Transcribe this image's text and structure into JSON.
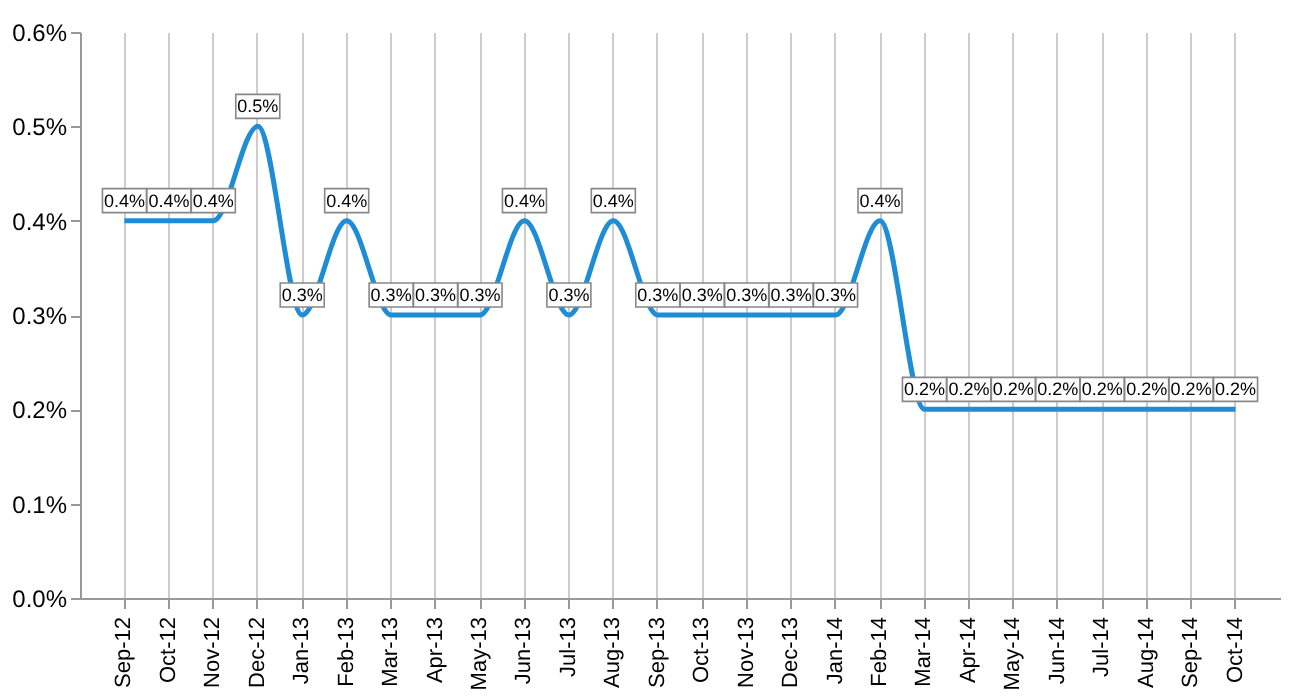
{
  "chart_data": {
    "type": "line",
    "categories": [
      "Sep-12",
      "Oct-12",
      "Nov-12",
      "Dec-12",
      "Jan-13",
      "Feb-13",
      "Mar-13",
      "Apr-13",
      "May-13",
      "Jun-13",
      "Jul-13",
      "Aug-13",
      "Sep-13",
      "Oct-13",
      "Nov-13",
      "Dec-13",
      "Jan-14",
      "Feb-14",
      "Mar-14",
      "Apr-14",
      "May-14",
      "Jun-14",
      "Jul-14",
      "Aug-14",
      "Sep-14",
      "Oct-14"
    ],
    "series": [
      {
        "color": "#1f8dd6",
        "values": [
          0.4,
          0.4,
          0.4,
          0.5,
          0.3,
          0.4,
          0.3,
          0.3,
          0.3,
          0.4,
          0.3,
          0.4,
          0.3,
          0.3,
          0.3,
          0.3,
          0.3,
          0.4,
          0.2,
          0.2,
          0.2,
          0.2,
          0.2,
          0.2,
          0.2,
          0.2
        ],
        "value_labels": [
          "0.4%",
          "0.4%",
          "0.4%",
          "0.5%",
          "0.3%",
          "0.4%",
          "0.3%",
          "0.3%",
          "0.3%",
          "0.4%",
          "0.3%",
          "0.4%",
          "0.3%",
          "0.3%",
          "0.3%",
          "0.3%",
          "0.3%",
          "0.4%",
          "0.2%",
          "0.2%",
          "0.2%",
          "0.2%",
          "0.2%",
          "0.2%",
          "0.2%",
          "0.2%"
        ]
      }
    ],
    "ylim": [
      0,
      0.6
    ],
    "yticks": [
      {
        "value": 0,
        "label": "0.0%"
      },
      {
        "value": 0.1,
        "label": "0.1%"
      },
      {
        "value": 0.2,
        "label": "0.2%"
      },
      {
        "value": 0.3,
        "label": "0.3%"
      },
      {
        "value": 0.4,
        "label": "0.4%"
      },
      {
        "value": 0.5,
        "label": "0.5%"
      },
      {
        "value": 0.6,
        "label": "0.6%"
      }
    ],
    "grid": "x",
    "marker": "none",
    "line_style": "solid"
  }
}
